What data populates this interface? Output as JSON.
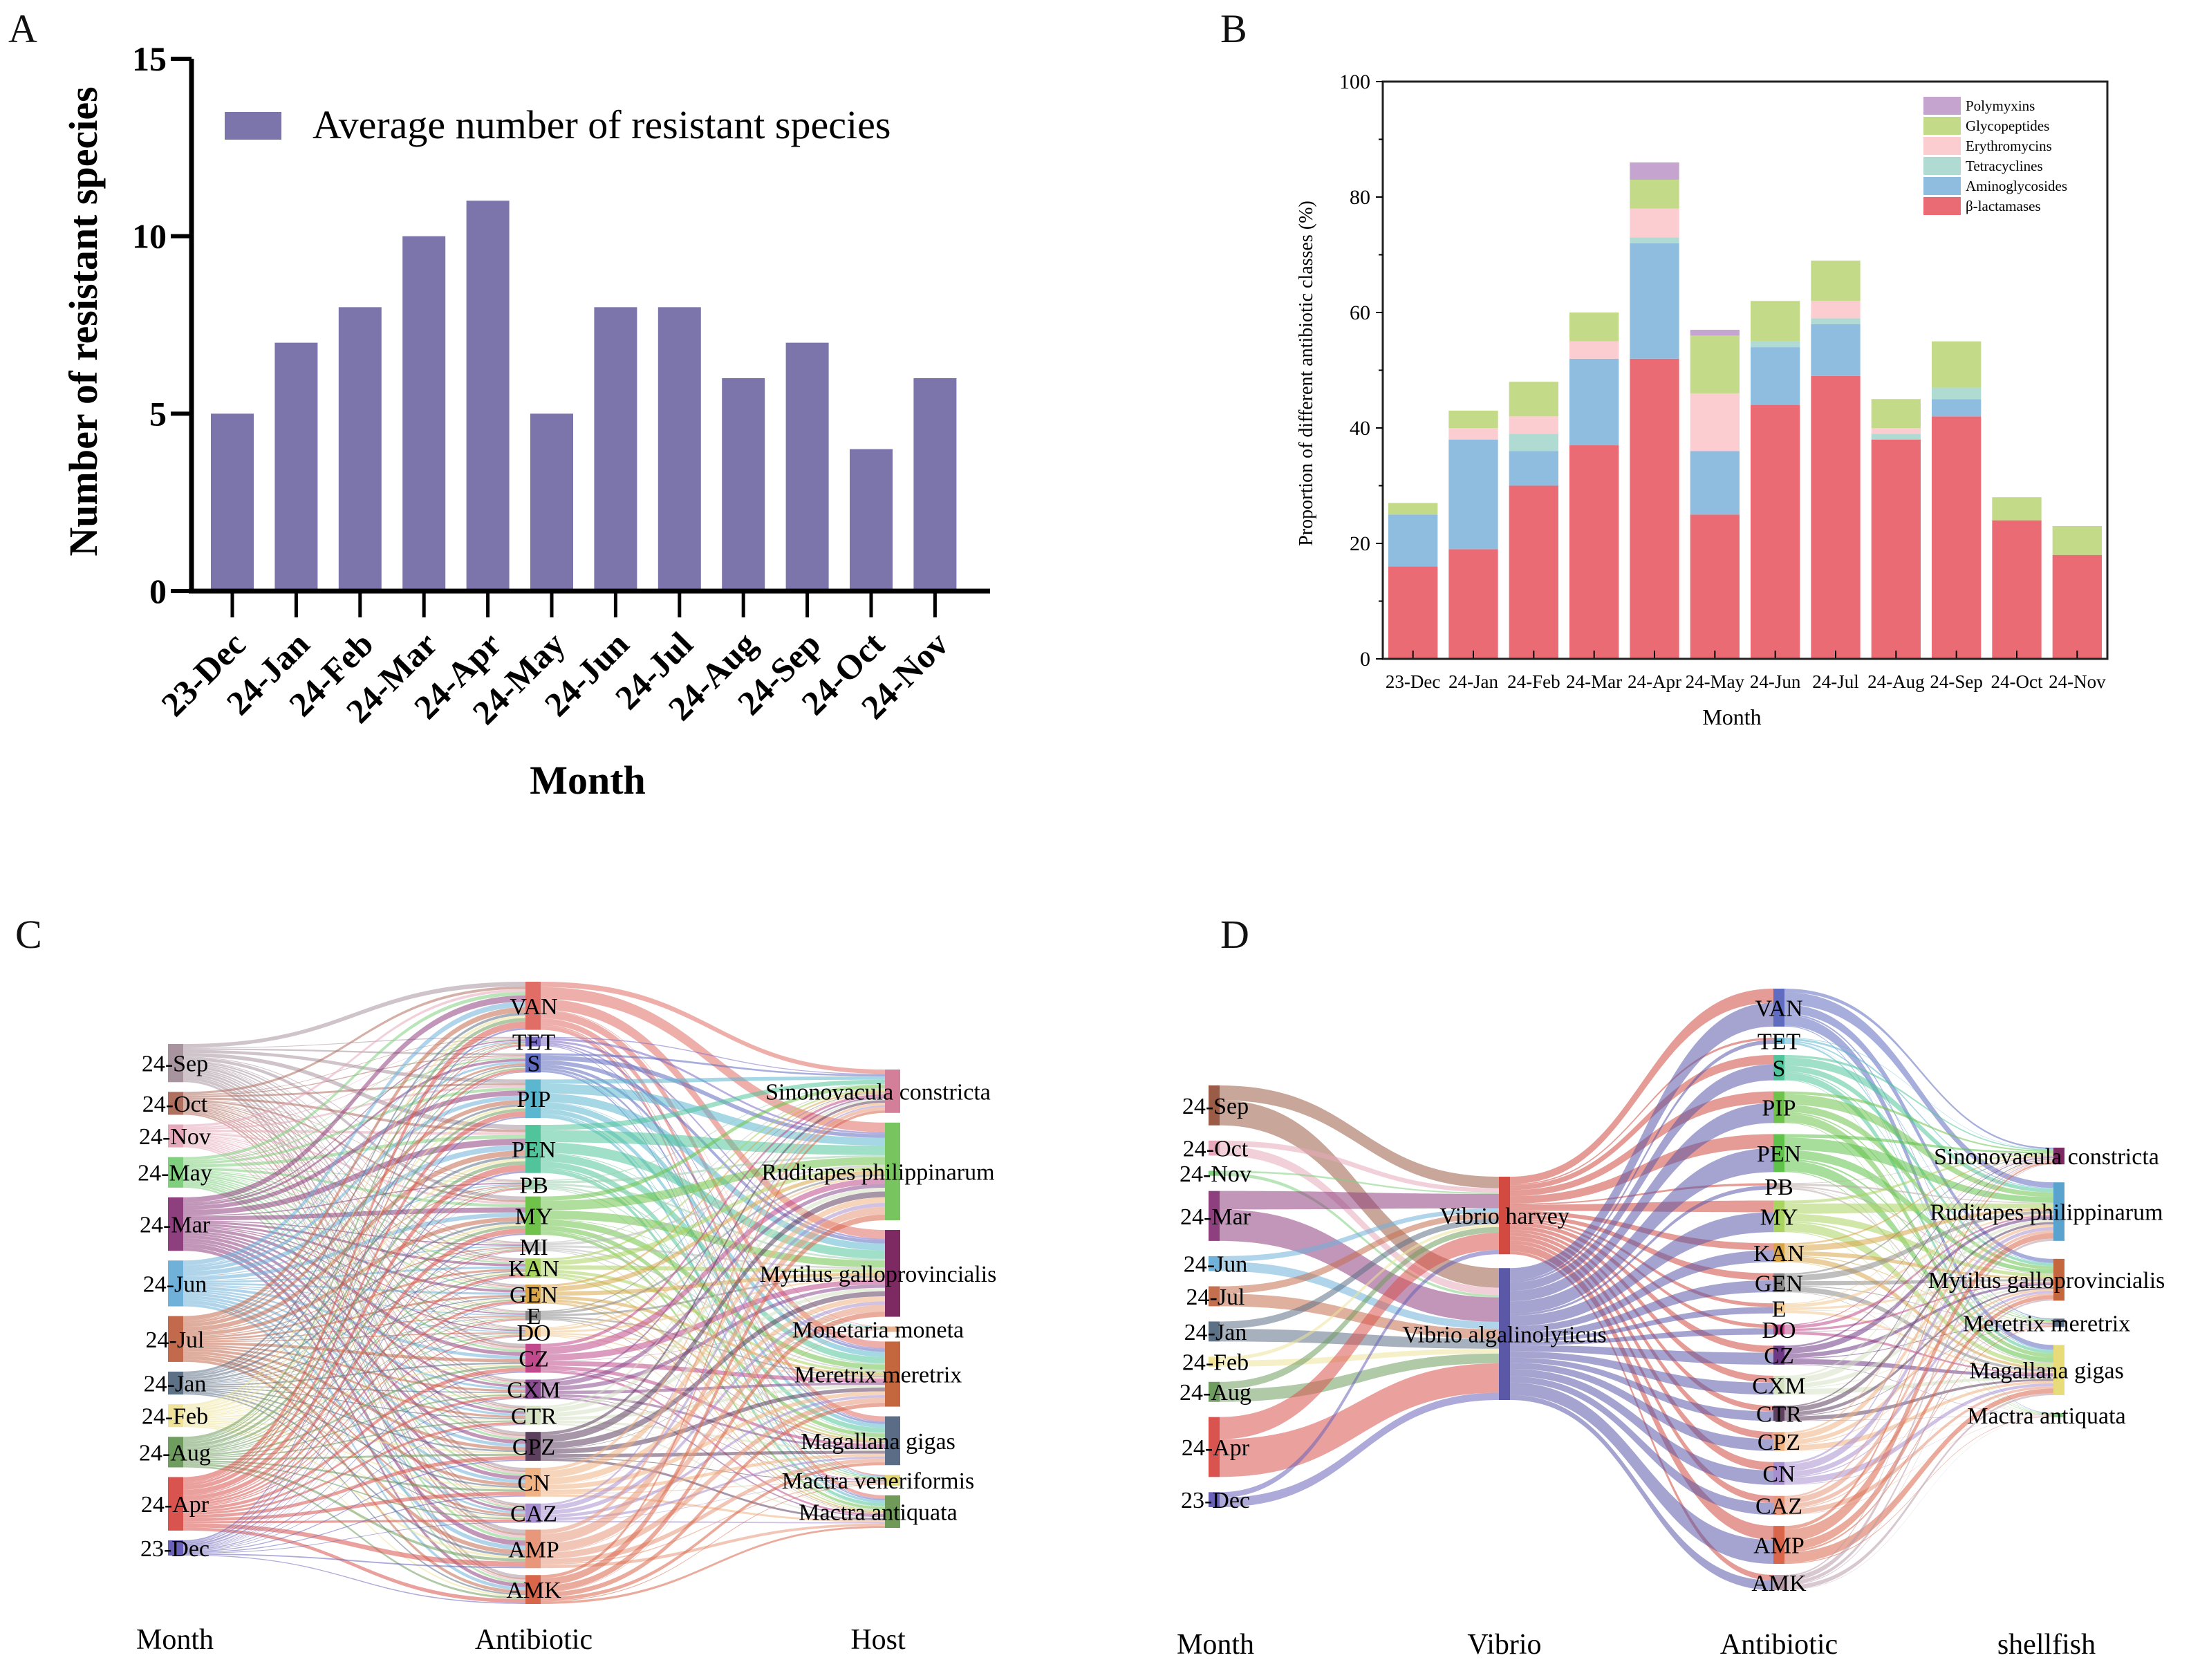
{
  "panels": {
    "a": "A",
    "b": "B",
    "c": "C",
    "d": "D"
  },
  "chart_data": [
    {
      "id": "A",
      "type": "bar",
      "title": "",
      "xlabel": "Month",
      "ylabel": "Number of resistant species",
      "ylim": [
        0,
        15
      ],
      "yticks": [
        0,
        5,
        10,
        15
      ],
      "legend": {
        "position": "top-right",
        "entries": [
          "Average number of resistant species"
        ]
      },
      "color": "#7b75ab",
      "categories": [
        "23-Dec",
        "24-Jan",
        "24-Feb",
        "24-Mar",
        "24-Apr",
        "24-May",
        "24-Jun",
        "24-Jul",
        "24-Aug",
        "24-Sep",
        "24-Oct",
        "24-Nov"
      ],
      "values": [
        5,
        7,
        8,
        10,
        11,
        5,
        8,
        8,
        6,
        7,
        4,
        6
      ]
    },
    {
      "id": "B",
      "type": "bar",
      "stacked": true,
      "xlabel": "Month",
      "ylabel": "Proportion of different antibiotic classes (%)",
      "ylim": [
        0,
        100
      ],
      "yticks": [
        0,
        20,
        40,
        60,
        80,
        100
      ],
      "legend": {
        "position": "top-right"
      },
      "categories": [
        "23-Dec",
        "24-Jan",
        "24-Feb",
        "24-Mar",
        "24-Apr",
        "24-May",
        "24-Jun",
        "24-Jul",
        "24-Aug",
        "24-Sep",
        "24-Oct",
        "24-Nov"
      ],
      "series": [
        {
          "name": "β-lactamases",
          "color": "#eb6b75",
          "values": [
            16,
            19,
            30,
            37,
            52,
            25,
            44,
            49,
            38,
            42,
            24,
            18
          ]
        },
        {
          "name": "Aminoglycosides",
          "color": "#8fbde0",
          "values": [
            9,
            19,
            6,
            15,
            20,
            11,
            10,
            9,
            0,
            3,
            0,
            0
          ]
        },
        {
          "name": "Tetracyclines",
          "color": "#b0dbd2",
          "values": [
            0,
            0,
            3,
            0,
            1,
            0,
            1,
            1,
            1,
            2,
            0,
            0
          ]
        },
        {
          "name": "Erythromycins",
          "color": "#fccdd0",
          "values": [
            0,
            2,
            3,
            3,
            5,
            10,
            0,
            3,
            1,
            0,
            0,
            0
          ]
        },
        {
          "name": "Glycopeptides",
          "color": "#c3da88",
          "values": [
            2,
            3,
            6,
            5,
            5,
            10,
            7,
            7,
            5,
            8,
            4,
            5
          ]
        },
        {
          "name": "Polymyxins",
          "color": "#c5a5cf",
          "values": [
            0,
            0,
            0,
            0,
            3,
            1,
            0,
            0,
            0,
            0,
            0,
            0
          ]
        }
      ]
    },
    {
      "id": "C",
      "type": "sankey",
      "columns": [
        "Month",
        "Antibiotic",
        "Host"
      ],
      "nodes": {
        "Month": [
          {
            "label": "24-Sep",
            "color": "#a8949e",
            "w": 5
          },
          {
            "label": "24-Oct",
            "color": "#b07060",
            "w": 3
          },
          {
            "label": "24-Nov",
            "color": "#e6a9bc",
            "w": 3
          },
          {
            "label": "24-May",
            "color": "#7fcf7f",
            "w": 4
          },
          {
            "label": "24-Mar",
            "color": "#8e3f7e",
            "w": 7
          },
          {
            "label": "24-Jun",
            "color": "#6fb1d8",
            "w": 6
          },
          {
            "label": "24-Jul",
            "color": "#c46a4c",
            "w": 6
          },
          {
            "label": "24-Jan",
            "color": "#5d7186",
            "w": 3
          },
          {
            "label": "24-Feb",
            "color": "#efe39a",
            "w": 3
          },
          {
            "label": "24-Aug",
            "color": "#6f9c5f",
            "w": 4
          },
          {
            "label": "24-Apr",
            "color": "#d9534f",
            "w": 7
          },
          {
            "label": "23-Dec",
            "color": "#6a62b8",
            "w": 2
          }
        ],
        "Antibiotic": [
          {
            "label": "VAN",
            "color": "#e06d66",
            "w": 5
          },
          {
            "label": "TET",
            "color": "#7b6cc4",
            "w": 1
          },
          {
            "label": "S",
            "color": "#5f6cc0",
            "w": 2
          },
          {
            "label": "PIP",
            "color": "#5bb7cf",
            "w": 4
          },
          {
            "label": "PEN",
            "color": "#52c49b",
            "w": 5
          },
          {
            "label": "PB",
            "color": "#9fd0b0",
            "w": 1
          },
          {
            "label": "MY",
            "color": "#6fc24a",
            "w": 4
          },
          {
            "label": "MI",
            "color": "#bbbbbb",
            "w": 1
          },
          {
            "label": "KAN",
            "color": "#a9d461",
            "w": 2
          },
          {
            "label": "GEN",
            "color": "#d8a54a",
            "w": 2
          },
          {
            "label": "E",
            "color": "#8a8a8a",
            "w": 1
          },
          {
            "label": "DO",
            "color": "#f0c890",
            "w": 1
          },
          {
            "label": "CZ",
            "color": "#c04a8b",
            "w": 3
          },
          {
            "label": "CXM",
            "color": "#8a4d92",
            "w": 2
          },
          {
            "label": "CTR",
            "color": "#d6e2c4",
            "w": 2
          },
          {
            "label": "CPZ",
            "color": "#5d3f5e",
            "w": 3
          },
          {
            "label": "CN",
            "color": "#f0b384",
            "w": 3
          },
          {
            "label": "CAZ",
            "color": "#a88fd0",
            "w": 2
          },
          {
            "label": "AMP",
            "color": "#e8977a",
            "w": 4
          },
          {
            "label": "AMK",
            "color": "#d9664a",
            "w": 3
          }
        ],
        "Host": [
          {
            "label": "Sinonovacula constricta",
            "color": "#d37f9a",
            "w": 4
          },
          {
            "label": "Ruditapes philippinarum",
            "color": "#78c45e",
            "w": 9
          },
          {
            "label": "Mytilus galloprovincialis",
            "color": "#7e2a62",
            "w": 8
          },
          {
            "label": "Monetaria moneta",
            "color": "#e8b28f",
            "w": 0.5
          },
          {
            "label": "Meretrix meretrix",
            "color": "#c4673e",
            "w": 6
          },
          {
            "label": "Magallana gigas",
            "color": "#5b6c86",
            "w": 4.5
          },
          {
            "label": "Mactra veneriformis",
            "color": "#e3d77a",
            "w": 1
          },
          {
            "label": "Mactra antiquata",
            "color": "#6f9a58",
            "w": 3
          }
        ]
      }
    },
    {
      "id": "D",
      "type": "sankey",
      "columns": [
        "Month",
        "Vibrio",
        "Antibiotic",
        "shellfish"
      ],
      "nodes": {
        "Month": [
          {
            "label": "24-Sep",
            "color": "#9a5c46",
            "w": 4
          },
          {
            "label": "24-Oct",
            "color": "#e6a9bc",
            "w": 1.5
          },
          {
            "label": "24-Nov",
            "color": "#7fcf7f",
            "w": 0.5
          },
          {
            "label": "24-Mar",
            "color": "#8e3f7e",
            "w": 5
          },
          {
            "label": "24-Jun",
            "color": "#6fb1d8",
            "w": 1.5
          },
          {
            "label": "24-Jul",
            "color": "#c4704f",
            "w": 2
          },
          {
            "label": "24-Jan",
            "color": "#5d7186",
            "w": 2
          },
          {
            "label": "24-Feb",
            "color": "#efe39a",
            "w": 1
          },
          {
            "label": "24-Aug",
            "color": "#6f9c5f",
            "w": 2
          },
          {
            "label": "24-Apr",
            "color": "#d9534f",
            "w": 6
          },
          {
            "label": "23-Dec",
            "color": "#6a62b8",
            "w": 1.5
          }
        ],
        "Vibrio": [
          {
            "label": "Vibrio harvey",
            "color": "#d24a40",
            "w": 10
          },
          {
            "label": "Vibrio algalinolyticus",
            "color": "#5b58a8",
            "w": 17
          }
        ],
        "Antibiotic": [
          {
            "label": "VAN",
            "color": "#5f6cc0",
            "w": 3
          },
          {
            "label": "TET",
            "color": "#5bb7cf",
            "w": 0.5
          },
          {
            "label": "S",
            "color": "#52c49b",
            "w": 2
          },
          {
            "label": "PIP",
            "color": "#6fc24a",
            "w": 2.5
          },
          {
            "label": "PEN",
            "color": "#5fc24a",
            "w": 3
          },
          {
            "label": "PB",
            "color": "#bbaaaa",
            "w": 0.5
          },
          {
            "label": "MY",
            "color": "#a9d461",
            "w": 2.5
          },
          {
            "label": "KAN",
            "color": "#d8a54a",
            "w": 1.5
          },
          {
            "label": "GEN",
            "color": "#8a8a8a",
            "w": 1.5
          },
          {
            "label": "E",
            "color": "#f0c890",
            "w": 0.8
          },
          {
            "label": "DO",
            "color": "#c04a8b",
            "w": 0.8
          },
          {
            "label": "CZ",
            "color": "#6e3a86",
            "w": 1.5
          },
          {
            "label": "CXM",
            "color": "#d6e2c4",
            "w": 1.5
          },
          {
            "label": "CTR",
            "color": "#5d3f5e",
            "w": 1.2
          },
          {
            "label": "CPZ",
            "color": "#f0b384",
            "w": 1.5
          },
          {
            "label": "CN",
            "color": "#a88fd0",
            "w": 1.8
          },
          {
            "label": "CAZ",
            "color": "#e8977a",
            "w": 1.5
          },
          {
            "label": "AMP",
            "color": "#d9664a",
            "w": 3
          },
          {
            "label": "AMK",
            "color": "#b89aa8",
            "w": 1.2
          }
        ],
        "shellfish": [
          {
            "label": "Sinonovacula constricta",
            "color": "#7e2a62",
            "w": 2
          },
          {
            "label": "Ruditapes philippinarum",
            "color": "#5ba3cf",
            "w": 7
          },
          {
            "label": "Mytilus galloprovincialis",
            "color": "#c4673e",
            "w": 5
          },
          {
            "label": "Meretrix meretrix",
            "color": "#5b6c86",
            "w": 1
          },
          {
            "label": "Magallana gigas",
            "color": "#e8dc7a",
            "w": 6
          },
          {
            "label": "Mactra antiquata",
            "color": "#7fcf7f",
            "w": 0.5
          }
        ]
      }
    }
  ]
}
